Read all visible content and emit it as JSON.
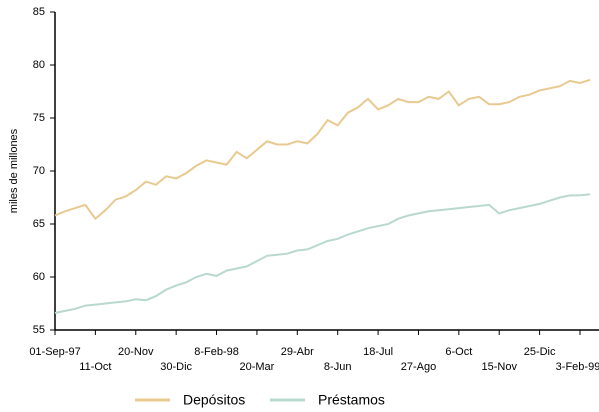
{
  "chart_data": {
    "type": "line",
    "y_label": "miles de millones",
    "categories": [
      "01-Sep-97",
      null,
      null,
      null,
      "11-Oct",
      null,
      null,
      null,
      "20-Nov",
      null,
      null,
      null,
      "30-Dic",
      null,
      null,
      null,
      "8-Feb-98",
      null,
      null,
      null,
      "20-Mar",
      null,
      null,
      null,
      "29-Abr",
      null,
      null,
      null,
      "8-Jun",
      null,
      null,
      null,
      "18-Jul",
      null,
      null,
      null,
      "27-Ago",
      null,
      null,
      null,
      "6-Oct",
      null,
      null,
      null,
      "15-Nov",
      null,
      null,
      null,
      "25-Dic",
      null,
      null,
      null,
      "3-Feb-99",
      null
    ],
    "series": [
      {
        "name": "Depósitos",
        "color": "#e8c98f",
        "values": [
          65.8,
          66.2,
          66.5,
          66.8,
          65.5,
          66.3,
          67.3,
          67.6,
          68.2,
          69.0,
          68.7,
          69.5,
          69.3,
          69.8,
          70.5,
          71.0,
          70.8,
          70.6,
          71.8,
          71.2,
          72.0,
          72.8,
          72.5,
          72.5,
          72.8,
          72.6,
          73.5,
          74.8,
          74.3,
          75.5,
          76.0,
          76.8,
          75.8,
          76.2,
          76.8,
          76.5,
          76.5,
          77.0,
          76.8,
          77.5,
          76.2,
          76.8,
          77.0,
          76.3,
          76.3,
          76.5,
          77.0,
          77.2,
          77.6,
          77.8,
          78.0,
          78.5,
          78.3,
          78.6
        ]
      },
      {
        "name": "Préstamos",
        "color": "#b8d8d0",
        "values": [
          56.6,
          56.8,
          57.0,
          57.3,
          57.4,
          57.5,
          57.6,
          57.7,
          57.9,
          57.8,
          58.2,
          58.8,
          59.2,
          59.5,
          60.0,
          60.3,
          60.1,
          60.6,
          60.8,
          61.0,
          61.5,
          62.0,
          62.1,
          62.2,
          62.5,
          62.6,
          63.0,
          63.4,
          63.6,
          64.0,
          64.3,
          64.6,
          64.8,
          65.0,
          65.5,
          65.8,
          66.0,
          66.2,
          66.3,
          66.4,
          66.5,
          66.6,
          66.7,
          66.8,
          66.0,
          66.3,
          66.5,
          66.7,
          66.9,
          67.2,
          67.5,
          67.7,
          67.7,
          67.8
        ]
      }
    ],
    "ylim": [
      55,
      85
    ],
    "yticks": [
      55,
      60,
      65,
      70,
      75,
      80,
      85
    ],
    "grid": false,
    "legend": "bottom"
  }
}
